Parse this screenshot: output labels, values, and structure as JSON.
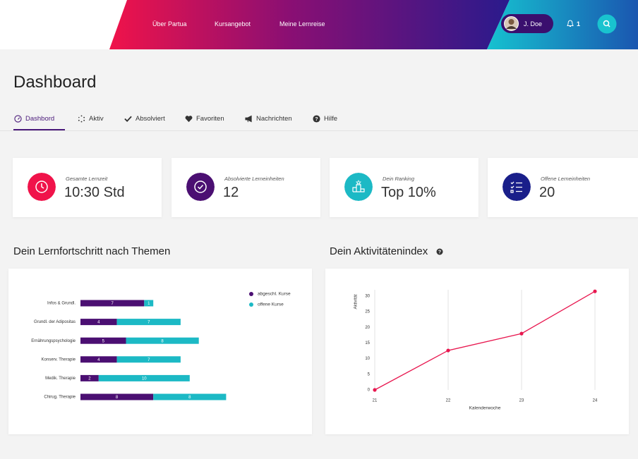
{
  "nav": {
    "links": [
      "Über Partua",
      "Kursangebot",
      "Meine Lernreise"
    ],
    "user": "J. Doe",
    "notifications": 1
  },
  "header": {
    "title": "Dashboard"
  },
  "tabs": [
    "Dashbord",
    "Aktiv",
    "Absolviert",
    "Favoriten",
    "Nachrichten",
    "Hilfe"
  ],
  "stats": [
    {
      "label": "Gesamte Lernzeit",
      "value": "10:30 Std"
    },
    {
      "label": "Absolvierte Lerneinheiten",
      "value": "12"
    },
    {
      "label": "Dein Ranking",
      "value": "Top 10%"
    },
    {
      "label": "Offene Lerneinheiten",
      "value": "20"
    }
  ],
  "chart_data": [
    {
      "type": "bar",
      "orientation": "horizontal",
      "stacked": true,
      "title": "Dein Lernfortschritt nach Themen",
      "categories": [
        "Infos & Grundl.",
        "Grundl. der Adipositas",
        "Ernährungspsychologie",
        "Konserv. Therapie",
        "Medik. Therapie",
        "Chirug. Therapie"
      ],
      "series": [
        {
          "name": "abgeschl. Kurse",
          "color": "#4b0f72",
          "values": [
            7,
            4,
            5,
            4,
            2,
            8
          ]
        },
        {
          "name": "offene Kurse",
          "color": "#1cb9c5",
          "values": [
            1,
            7,
            8,
            7,
            10,
            8
          ]
        }
      ],
      "legend": "top-right"
    },
    {
      "type": "line",
      "title": "Dein Aktivitätenindex",
      "x": [
        21,
        22,
        23,
        24
      ],
      "values": [
        0,
        12.6,
        18,
        31.5
      ],
      "color": "#e8174f",
      "xlim": [
        21,
        24
      ],
      "xticks": [
        21,
        22,
        23,
        24
      ],
      "ylim": [
        0,
        32
      ],
      "yticks": [
        0,
        5,
        10,
        15,
        20,
        25,
        30
      ],
      "xlabel": "Kalenderwoche",
      "ylabel": "Aktivität",
      "grid": "x"
    }
  ]
}
